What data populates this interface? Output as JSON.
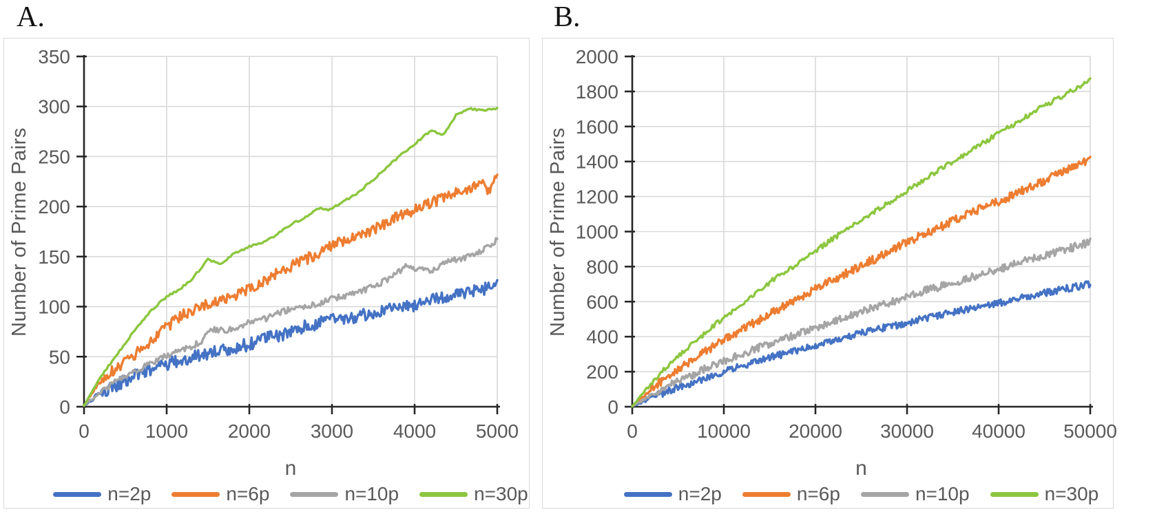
{
  "styles": {
    "text_color": "#595959",
    "axis_color": "#262626",
    "grid_color": "#D9D9D9",
    "panel_border": "#D9D9D9",
    "background": "#ffffff"
  },
  "chart_data": [
    {
      "type": "line",
      "panel_label": "A.",
      "title": "",
      "xlabel": "n",
      "ylabel": "Number of Prime Pairs",
      "xlim": [
        0,
        5000
      ],
      "ylim": [
        0,
        350
      ],
      "xticks": [
        0,
        1000,
        2000,
        3000,
        4000,
        5000
      ],
      "yticks": [
        0,
        50,
        100,
        150,
        200,
        250,
        300,
        350
      ],
      "grid": true,
      "legend_position": "bottom",
      "series": [
        {
          "name": "n=2p",
          "color": "#4472C4",
          "noise": 6.5,
          "samples": 380,
          "points": [
            [
              0,
              1
            ],
            [
              200,
              13
            ],
            [
              400,
              22
            ],
            [
              600,
              30
            ],
            [
              800,
              37
            ],
            [
              1000,
              42
            ],
            [
              1200,
              47
            ],
            [
              1400,
              52
            ],
            [
              1600,
              55
            ],
            [
              1800,
              59
            ],
            [
              2000,
              62
            ],
            [
              2200,
              68
            ],
            [
              2400,
              72
            ],
            [
              2600,
              78
            ],
            [
              2800,
              83
            ],
            [
              3000,
              86
            ],
            [
              3200,
              89
            ],
            [
              3400,
              92
            ],
            [
              3600,
              95
            ],
            [
              3800,
              98
            ],
            [
              4000,
              101
            ],
            [
              4200,
              107
            ],
            [
              4400,
              111
            ],
            [
              4600,
              113
            ],
            [
              4800,
              117
            ],
            [
              5000,
              122
            ]
          ]
        },
        {
          "name": "n=6p",
          "color": "#ED7D31",
          "noise": 5.5,
          "samples": 340,
          "points": [
            [
              0,
              1
            ],
            [
              150,
              20
            ],
            [
              300,
              33
            ],
            [
              500,
              45
            ],
            [
              700,
              58
            ],
            [
              900,
              72
            ],
            [
              1000,
              80
            ],
            [
              1200,
              92
            ],
            [
              1400,
              100
            ],
            [
              1600,
              105
            ],
            [
              1800,
              111
            ],
            [
              2000,
              117
            ],
            [
              2200,
              127
            ],
            [
              2400,
              136
            ],
            [
              2600,
              144
            ],
            [
              2800,
              152
            ],
            [
              3000,
              162
            ],
            [
              3200,
              168
            ],
            [
              3400,
              174
            ],
            [
              3600,
              181
            ],
            [
              3800,
              190
            ],
            [
              4000,
              197
            ],
            [
              4200,
              204
            ],
            [
              4400,
              210
            ],
            [
              4600,
              216
            ],
            [
              4800,
              224
            ],
            [
              4900,
              216
            ],
            [
              5000,
              231
            ]
          ]
        },
        {
          "name": "n=10p",
          "color": "#A5A5A5",
          "noise": 3,
          "samples": 320,
          "points": [
            [
              0,
              1
            ],
            [
              200,
              15
            ],
            [
              400,
              26
            ],
            [
              600,
              34
            ],
            [
              800,
              43
            ],
            [
              1000,
              51
            ],
            [
              1200,
              57
            ],
            [
              1400,
              64
            ],
            [
              1550,
              78
            ],
            [
              1700,
              76
            ],
            [
              1850,
              79
            ],
            [
              2000,
              84
            ],
            [
              2200,
              88
            ],
            [
              2400,
              95
            ],
            [
              2600,
              99
            ],
            [
              2800,
              102
            ],
            [
              3000,
              108
            ],
            [
              3200,
              111
            ],
            [
              3400,
              117
            ],
            [
              3600,
              124
            ],
            [
              3800,
              134
            ],
            [
              3900,
              141
            ],
            [
              4000,
              138
            ],
            [
              4200,
              136
            ],
            [
              4400,
              145
            ],
            [
              4600,
              149
            ],
            [
              4800,
              155
            ],
            [
              5000,
              167
            ]
          ]
        },
        {
          "name": "n=30p",
          "color": "#8CC63F",
          "noise": 1,
          "samples": 220,
          "points": [
            [
              0,
              1
            ],
            [
              200,
              30
            ],
            [
              400,
              52
            ],
            [
              600,
              75
            ],
            [
              800,
              95
            ],
            [
              1000,
              110
            ],
            [
              1150,
              117
            ],
            [
              1300,
              127
            ],
            [
              1500,
              147
            ],
            [
              1650,
              142
            ],
            [
              1800,
              152
            ],
            [
              2000,
              160
            ],
            [
              2150,
              164
            ],
            [
              2300,
              170
            ],
            [
              2500,
              182
            ],
            [
              2700,
              190
            ],
            [
              2850,
              199
            ],
            [
              2950,
              196
            ],
            [
              3100,
              203
            ],
            [
              3300,
              213
            ],
            [
              3500,
              227
            ],
            [
              3700,
              242
            ],
            [
              3900,
              256
            ],
            [
              4050,
              266
            ],
            [
              4200,
              276
            ],
            [
              4350,
              272
            ],
            [
              4500,
              291
            ],
            [
              4650,
              298
            ],
            [
              4800,
              296
            ],
            [
              5000,
              298
            ]
          ]
        }
      ]
    },
    {
      "type": "line",
      "panel_label": "B.",
      "title": "",
      "xlabel": "n",
      "ylabel": "Number of Prime Pairs",
      "xlim": [
        0,
        50000
      ],
      "ylim": [
        0,
        2000
      ],
      "xticks": [
        0,
        10000,
        20000,
        30000,
        40000,
        50000
      ],
      "yticks": [
        0,
        200,
        400,
        600,
        800,
        1000,
        1200,
        1400,
        1600,
        1800,
        2000
      ],
      "grid": true,
      "legend_position": "bottom",
      "series": [
        {
          "name": "n=2p",
          "color": "#4472C4",
          "noise": 20,
          "samples": 450,
          "points": [
            [
              0,
              2
            ],
            [
              2500,
              60
            ],
            [
              5000,
              110
            ],
            [
              7500,
              155
            ],
            [
              10000,
              200
            ],
            [
              12500,
              240
            ],
            [
              15000,
              280
            ],
            [
              17500,
              315
            ],
            [
              20000,
              350
            ],
            [
              22500,
              385
            ],
            [
              25000,
              420
            ],
            [
              27500,
              450
            ],
            [
              30000,
              480
            ],
            [
              32500,
              510
            ],
            [
              35000,
              540
            ],
            [
              37500,
              565
            ],
            [
              40000,
              590
            ],
            [
              42500,
              620
            ],
            [
              45000,
              650
            ],
            [
              47500,
              675
            ],
            [
              50000,
              700
            ]
          ]
        },
        {
          "name": "n=6p",
          "color": "#ED7D31",
          "noise": 24,
          "samples": 450,
          "points": [
            [
              0,
              2
            ],
            [
              2500,
              120
            ],
            [
              5000,
              215
            ],
            [
              7500,
              300
            ],
            [
              10000,
              380
            ],
            [
              12500,
              455
            ],
            [
              15000,
              530
            ],
            [
              17500,
              600
            ],
            [
              20000,
              670
            ],
            [
              22500,
              740
            ],
            [
              25000,
              805
            ],
            [
              27500,
              870
            ],
            [
              30000,
              940
            ],
            [
              32500,
              1000
            ],
            [
              35000,
              1060
            ],
            [
              37500,
              1120
            ],
            [
              40000,
              1170
            ],
            [
              42500,
              1230
            ],
            [
              45000,
              1290
            ],
            [
              47500,
              1350
            ],
            [
              50000,
              1410
            ]
          ]
        },
        {
          "name": "n=10p",
          "color": "#A5A5A5",
          "noise": 22,
          "samples": 450,
          "points": [
            [
              0,
              2
            ],
            [
              2500,
              80
            ],
            [
              5000,
              145
            ],
            [
              7500,
              205
            ],
            [
              10000,
              260
            ],
            [
              12500,
              310
            ],
            [
              15000,
              360
            ],
            [
              17500,
              405
            ],
            [
              20000,
              450
            ],
            [
              22500,
              495
            ],
            [
              25000,
              540
            ],
            [
              27500,
              585
            ],
            [
              30000,
              630
            ],
            [
              32500,
              670
            ],
            [
              35000,
              705
            ],
            [
              37500,
              745
            ],
            [
              40000,
              785
            ],
            [
              42500,
              825
            ],
            [
              45000,
              865
            ],
            [
              47500,
              900
            ],
            [
              50000,
              940
            ]
          ]
        },
        {
          "name": "n=30p",
          "color": "#8CC63F",
          "noise": 14,
          "samples": 320,
          "points": [
            [
              0,
              2
            ],
            [
              2500,
              160
            ],
            [
              5000,
              290
            ],
            [
              7500,
              400
            ],
            [
              10000,
              510
            ],
            [
              12500,
              610
            ],
            [
              15000,
              710
            ],
            [
              17500,
              800
            ],
            [
              20000,
              890
            ],
            [
              22500,
              980
            ],
            [
              25000,
              1070
            ],
            [
              27500,
              1150
            ],
            [
              30000,
              1230
            ],
            [
              32500,
              1320
            ],
            [
              35000,
              1400
            ],
            [
              37500,
              1480
            ],
            [
              40000,
              1560
            ],
            [
              42500,
              1640
            ],
            [
              45000,
              1720
            ],
            [
              47500,
              1790
            ],
            [
              50000,
              1865
            ]
          ]
        }
      ]
    }
  ]
}
